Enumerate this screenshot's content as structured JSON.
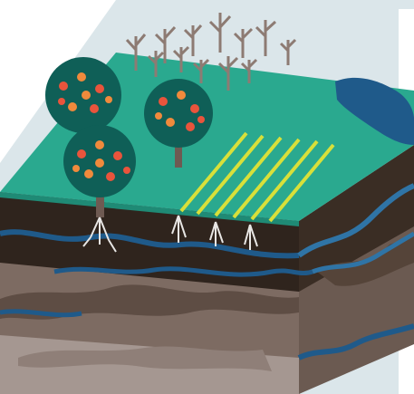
{
  "colors": {
    "background_sky": "#dbe6ea",
    "background_white": "#ffffff",
    "grass_top": "#2aa98f",
    "soil_dark": "#2f241d",
    "soil_mid": "#4a3a2f",
    "rock_brown": "#7d6b62",
    "rock_light": "#a59791",
    "water_blue": "#1f5a8a",
    "water_light": "#2f74a6",
    "tree_canopy": "#0f5f57",
    "tree_trunk": "#6e5a52",
    "bare_tree": "#8d7b73",
    "apple_red": "#e9543c",
    "apple_orange": "#f08a3c",
    "crop_row_yellow": "#d8e03a",
    "root_white": "#e8e6e4"
  },
  "icons": {
    "fruit_trees": "apple-tree-icon",
    "young_trees": "bare-tree-icon",
    "crops": "crop-row-icon",
    "groundwater": "water-channel-icon"
  }
}
